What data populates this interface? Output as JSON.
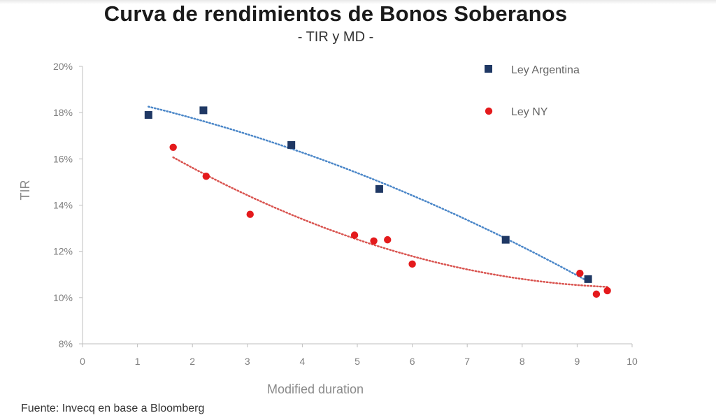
{
  "header": {
    "title": "Curva de rendimientos de Bonos Soberanos",
    "subtitle": "- TIR y MD -"
  },
  "footer": {
    "source": "Fuente: Invecq en base a Bloomberg"
  },
  "colors": {
    "ley_argentina": "#1f3864",
    "ley_ny": "#e41a1c",
    "trend_argentina": "#4a86c8",
    "trend_ny": "#d9534f",
    "axis": "#bfbfbf",
    "tick_text": "#7f7f7f"
  },
  "chart_data": {
    "type": "scatter",
    "title": "Curva de rendimientos de Bonos Soberanos",
    "subtitle": "- TIR y MD -",
    "xlabel": "Modified duration",
    "ylabel": "TIR",
    "xlim": [
      0,
      10
    ],
    "ylim": [
      8,
      20
    ],
    "x_ticks": [
      "0",
      "1",
      "2",
      "3",
      "4",
      "5",
      "6",
      "7",
      "8",
      "9",
      "10"
    ],
    "y_ticks": [
      "8%",
      "10%",
      "12%",
      "14%",
      "16%",
      "18%",
      "20%"
    ],
    "grid": false,
    "legend": "top-right",
    "series": [
      {
        "name": "Ley Argentina",
        "marker": "square",
        "trendline": "dotted",
        "x": [
          1.2,
          2.2,
          3.8,
          5.4,
          7.7,
          9.2
        ],
        "y": [
          17.9,
          18.1,
          16.6,
          14.7,
          12.5,
          10.8
        ]
      },
      {
        "name": "Ley NY",
        "marker": "circle",
        "trendline": "dotted",
        "x": [
          1.65,
          2.25,
          3.05,
          4.95,
          5.3,
          5.55,
          6.0,
          9.05,
          9.35,
          9.55
        ],
        "y": [
          16.5,
          15.25,
          13.6,
          12.7,
          12.45,
          12.5,
          11.45,
          11.05,
          10.15,
          10.3
        ]
      }
    ]
  }
}
